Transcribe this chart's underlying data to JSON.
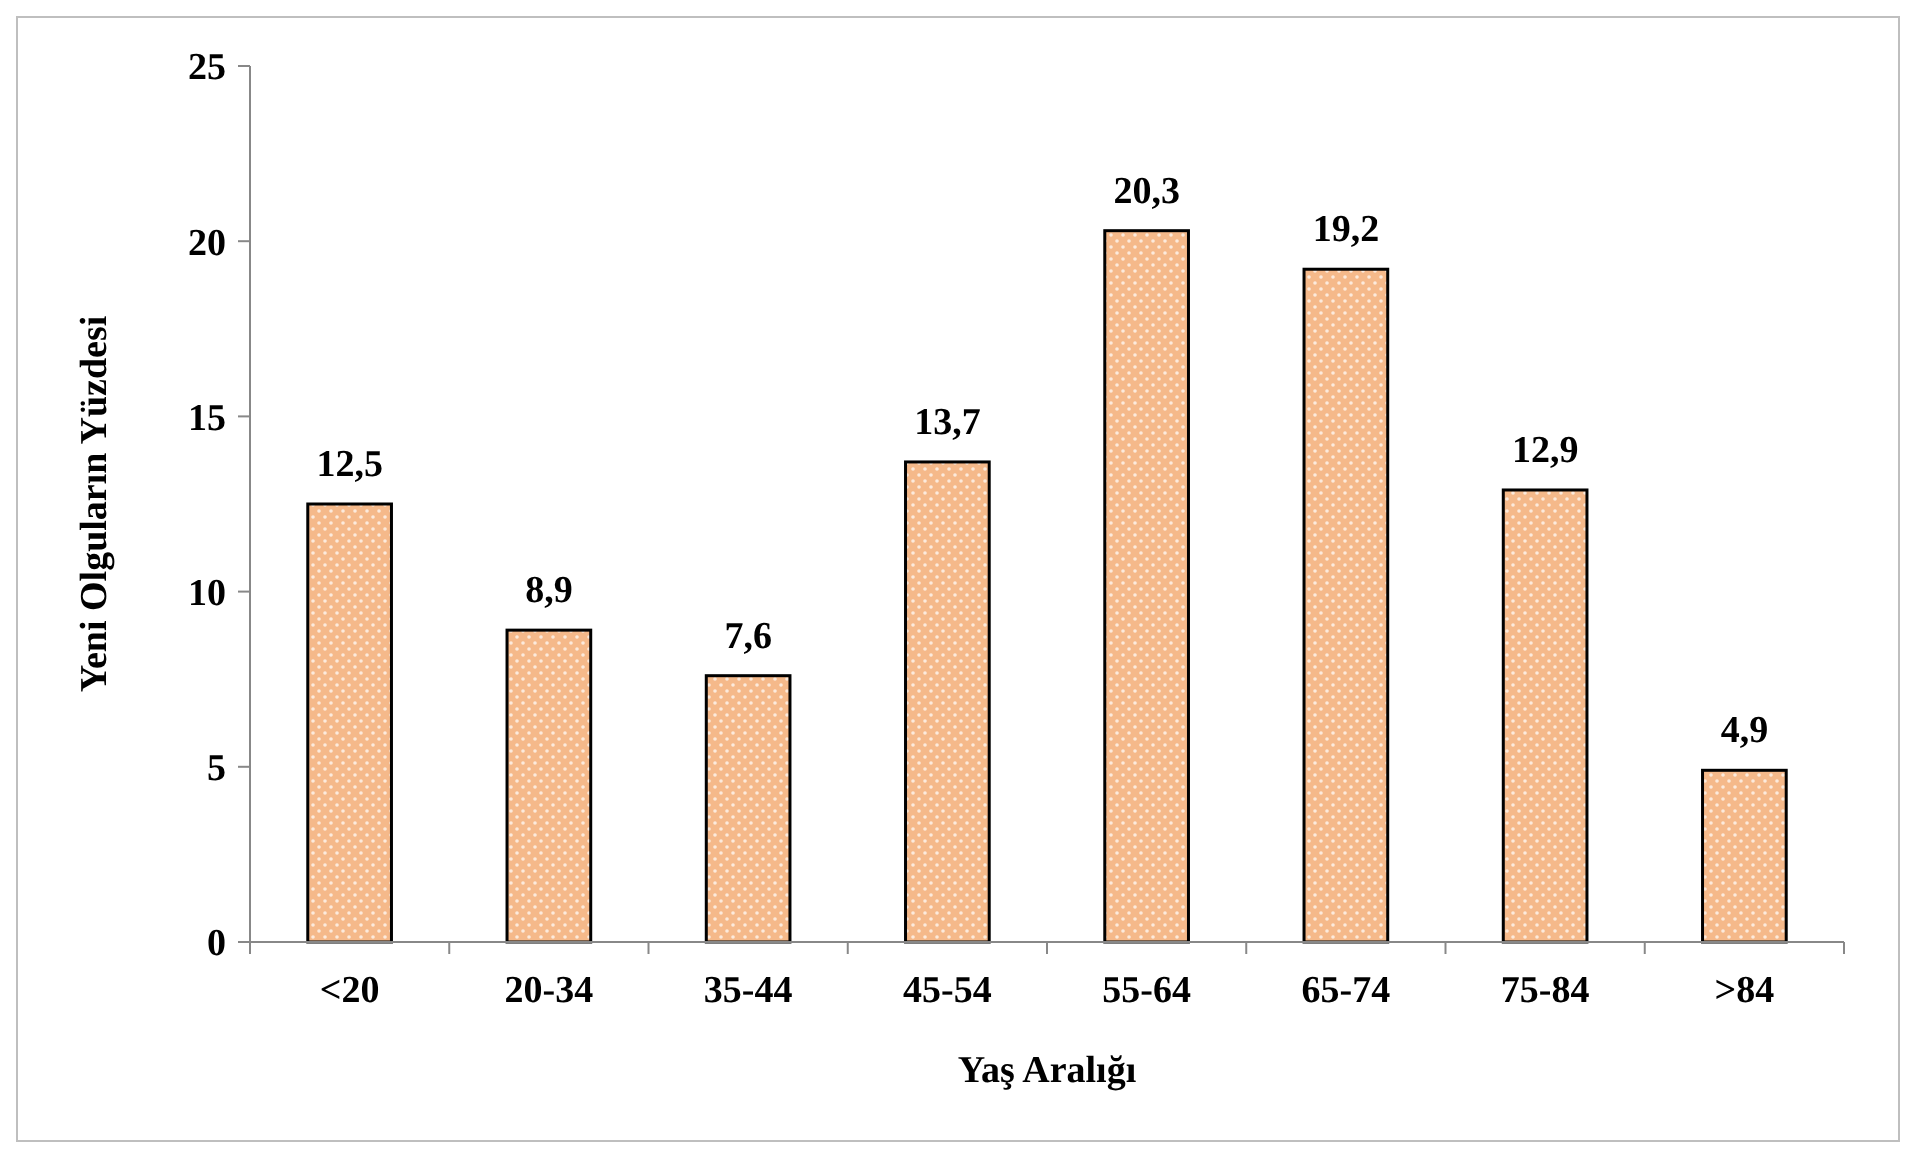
{
  "chart_data": {
    "type": "bar",
    "xlabel": "Yaş Aralığı",
    "ylabel": "Yeni Olguların Yüzdesi",
    "categories": [
      "<20",
      "20-34",
      "35-44",
      "45-54",
      "55-64",
      "65-74",
      "75-84",
      ">84"
    ],
    "values": [
      12.5,
      8.9,
      7.6,
      13.7,
      20.3,
      19.2,
      12.9,
      4.9
    ],
    "value_labels": [
      "12,5",
      "8,9",
      "7,6",
      "13,7",
      "20,3",
      "19,2",
      "12,9",
      "4,9"
    ],
    "color": "#f5b98a",
    "ylim": [
      0,
      25
    ],
    "yticks": [
      0,
      5,
      10,
      15,
      20,
      25
    ],
    "grid": false
  }
}
